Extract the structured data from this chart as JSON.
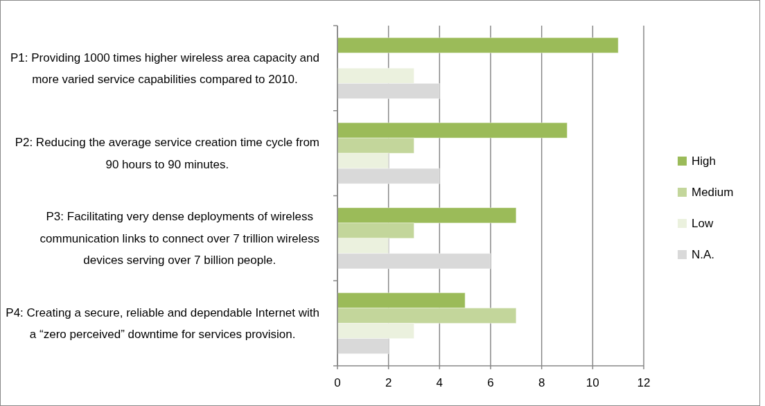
{
  "chart_data": {
    "type": "bar",
    "orientation": "horizontal",
    "categories": [
      "P1: Providing 1000 times higher wireless area capacity and more varied service capabilities compared to 2010.",
      "P2: Reducing the average service creation time cycle from 90 hours to 90 minutes.",
      "P3: Facilitating very dense deployments of wireless communication links to connect over 7 trillion wireless devices serving over 7 billion people.",
      "P4: Creating a secure, reliable and dependable Internet with a “zero perceived” downtime for services provision."
    ],
    "series": [
      {
        "name": "High",
        "color": "#9bbb59",
        "values": [
          11,
          9,
          7,
          5
        ]
      },
      {
        "name": "Medium",
        "color": "#c3d69b",
        "values": [
          null,
          3,
          3,
          7
        ]
      },
      {
        "name": "Low",
        "color": "#ebf1de",
        "values": [
          3,
          2,
          2,
          3
        ]
      },
      {
        "name": "N.A.",
        "color": "#d9d9d9",
        "values": [
          4,
          4,
          6,
          2
        ]
      }
    ],
    "xlim": [
      0,
      12
    ],
    "xticks": [
      0,
      2,
      4,
      6,
      8,
      10,
      12
    ],
    "grid": "x",
    "legend": "right"
  }
}
